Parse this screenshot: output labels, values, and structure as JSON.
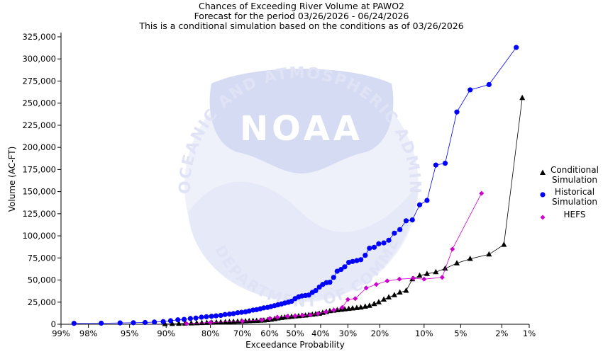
{
  "chart_data": {
    "type": "scatter",
    "title": "Chances of Exceeding River Volume at PAWO2",
    "subtitle1": "Forecast for the period 03/26/2026 - 06/24/2026",
    "subtitle2": "This is a conditional simulation based on the conditions as of 03/26/2026",
    "xlabel": "Exceedance Probability",
    "ylabel": "Volume (AC-FT)",
    "x_scale": "normal-probability",
    "xlim": [
      99,
      1
    ],
    "ylim": [
      0,
      325000
    ],
    "x_ticks": [
      {
        "p": 99,
        "label": "99%"
      },
      {
        "p": 98,
        "label": "98%"
      },
      {
        "p": 95,
        "label": "95%"
      },
      {
        "p": 90,
        "label": "90%"
      },
      {
        "p": 80,
        "label": "80%"
      },
      {
        "p": 70,
        "label": "70%"
      },
      {
        "p": 60,
        "label": "60%"
      },
      {
        "p": 50,
        "label": "50%"
      },
      {
        "p": 40,
        "label": "40%"
      },
      {
        "p": 30,
        "label": "30%"
      },
      {
        "p": 20,
        "label": "20%"
      },
      {
        "p": 10,
        "label": "10%"
      },
      {
        "p": 5,
        "label": "5%"
      },
      {
        "p": 2,
        "label": "2%"
      },
      {
        "p": 1,
        "label": "1%"
      }
    ],
    "y_ticks": [
      {
        "v": 0,
        "label": "0"
      },
      {
        "v": 25000,
        "label": "25,000"
      },
      {
        "v": 50000,
        "label": "50,000"
      },
      {
        "v": 75000,
        "label": "75,000"
      },
      {
        "v": 100000,
        "label": "100,000"
      },
      {
        "v": 125000,
        "label": "125,000"
      },
      {
        "v": 150000,
        "label": "150,000"
      },
      {
        "v": 175000,
        "label": "175,000"
      },
      {
        "v": 200000,
        "label": "200,000"
      },
      {
        "v": 225000,
        "label": "225,000"
      },
      {
        "v": 250000,
        "label": "250,000"
      },
      {
        "v": 275000,
        "label": "275,000"
      },
      {
        "v": 300000,
        "label": "300,000"
      },
      {
        "v": 325000,
        "label": "325,000"
      }
    ],
    "legend": {
      "position": "right"
    },
    "watermark_text": "NATIONAL OCEANIC AND ATMOSPHERIC ADMINISTRATION · U.S. DEPARTMENT OF COMMERCE · NOAA",
    "series": [
      {
        "name": "Conditional Simulation",
        "legend_lines": [
          "Conditional",
          "Simulation"
        ],
        "color": "#000000",
        "line_color": "#000000",
        "marker": "triangle",
        "points": [
          [
            90.2,
            300
          ],
          [
            88.9,
            500
          ],
          [
            87.6,
            700
          ],
          [
            86.3,
            900
          ],
          [
            84.9,
            1100
          ],
          [
            83.6,
            1300
          ],
          [
            82.3,
            1500
          ],
          [
            81,
            1700
          ],
          [
            79.6,
            1900
          ],
          [
            78.3,
            2100
          ],
          [
            77,
            2300
          ],
          [
            75.6,
            2500
          ],
          [
            74.3,
            2700
          ],
          [
            73,
            2900
          ],
          [
            71.6,
            3100
          ],
          [
            70.3,
            3300
          ],
          [
            68.9,
            3500
          ],
          [
            67.6,
            3700
          ],
          [
            66.2,
            3900
          ],
          [
            64.9,
            4000
          ],
          [
            63.5,
            4200
          ],
          [
            62.2,
            4400
          ],
          [
            60.8,
            4800
          ],
          [
            59.5,
            5300
          ],
          [
            58.1,
            6000
          ],
          [
            56.8,
            6700
          ],
          [
            55.4,
            7300
          ],
          [
            54.1,
            7800
          ],
          [
            52.7,
            8200
          ],
          [
            51.4,
            8600
          ],
          [
            50,
            9000
          ],
          [
            48.6,
            9300
          ],
          [
            47.3,
            9700
          ],
          [
            45.9,
            10000
          ],
          [
            44.6,
            10500
          ],
          [
            43.2,
            11000
          ],
          [
            41.9,
            11500
          ],
          [
            40.5,
            12000
          ],
          [
            39.2,
            13000
          ],
          [
            37.8,
            14000
          ],
          [
            36.5,
            15000
          ],
          [
            35.1,
            15500
          ],
          [
            33.8,
            16000
          ],
          [
            32.4,
            16500
          ],
          [
            31.1,
            17000
          ],
          [
            29.7,
            17500
          ],
          [
            28.4,
            18000
          ],
          [
            27,
            18500
          ],
          [
            25.7,
            19000
          ],
          [
            24.3,
            20000
          ],
          [
            23,
            21000
          ],
          [
            21.6,
            23000
          ],
          [
            20.3,
            25000
          ],
          [
            18.9,
            28000
          ],
          [
            17.6,
            30500
          ],
          [
            16.2,
            33000
          ],
          [
            14.9,
            36000
          ],
          [
            13.5,
            38000
          ],
          [
            12.2,
            51000
          ],
          [
            10.8,
            55000
          ],
          [
            9.5,
            57000
          ],
          [
            8.1,
            59000
          ],
          [
            6.8,
            63000
          ],
          [
            5.4,
            69000
          ],
          [
            4.1,
            74000
          ],
          [
            2.7,
            79000
          ],
          [
            1.9,
            90000
          ],
          [
            1.2,
            256000
          ]
        ]
      },
      {
        "name": "Historical Simulation",
        "legend_lines": [
          "Historical",
          "Simulation"
        ],
        "color": "#0000ff",
        "line_color": "#0000ff",
        "marker": "circle",
        "points": [
          [
            98.6,
            1000
          ],
          [
            97.3,
            1200
          ],
          [
            95.9,
            1500
          ],
          [
            94.6,
            1700
          ],
          [
            93.2,
            2000
          ],
          [
            91.9,
            2500
          ],
          [
            90.5,
            3000
          ],
          [
            89.2,
            4000
          ],
          [
            87.8,
            5000
          ],
          [
            86.5,
            5500
          ],
          [
            85.1,
            6500
          ],
          [
            83.8,
            7000
          ],
          [
            82.4,
            8000
          ],
          [
            81.1,
            8500
          ],
          [
            79.7,
            9000
          ],
          [
            78.4,
            9500
          ],
          [
            77,
            10000
          ],
          [
            75.7,
            11000
          ],
          [
            74.3,
            11500
          ],
          [
            73,
            12000
          ],
          [
            71.6,
            13000
          ],
          [
            70.3,
            13500
          ],
          [
            68.9,
            14000
          ],
          [
            67.6,
            15000
          ],
          [
            66.2,
            16000
          ],
          [
            64.9,
            16500
          ],
          [
            63.5,
            17500
          ],
          [
            62.2,
            18500
          ],
          [
            60.8,
            19000
          ],
          [
            59.5,
            20000
          ],
          [
            58.1,
            21000
          ],
          [
            56.8,
            22000
          ],
          [
            55.4,
            23000
          ],
          [
            54.1,
            24000
          ],
          [
            52.7,
            25000
          ],
          [
            51.4,
            26000
          ],
          [
            50,
            29000
          ],
          [
            48.6,
            31000
          ],
          [
            47.3,
            32000
          ],
          [
            45.9,
            32500
          ],
          [
            44.6,
            33000
          ],
          [
            43.2,
            36000
          ],
          [
            41.9,
            38000
          ],
          [
            40.5,
            42000
          ],
          [
            39.2,
            45000
          ],
          [
            37.8,
            47000
          ],
          [
            36.5,
            47500
          ],
          [
            35.1,
            53000
          ],
          [
            33.8,
            60000
          ],
          [
            32.4,
            62000
          ],
          [
            31.1,
            65000
          ],
          [
            29.7,
            70000
          ],
          [
            28.4,
            71000
          ],
          [
            27,
            72000
          ],
          [
            25.7,
            73000
          ],
          [
            24.3,
            78000
          ],
          [
            23,
            86000
          ],
          [
            21.6,
            87000
          ],
          [
            20.3,
            91000
          ],
          [
            18.9,
            92000
          ],
          [
            17.6,
            95000
          ],
          [
            16.2,
            103000
          ],
          [
            14.9,
            107000
          ],
          [
            13.5,
            117000
          ],
          [
            12.2,
            118000
          ],
          [
            10.8,
            135000
          ],
          [
            9.5,
            140000
          ],
          [
            8.1,
            180000
          ],
          [
            6.8,
            182000
          ],
          [
            5.4,
            240000
          ],
          [
            4.1,
            265000
          ],
          [
            2.7,
            271000
          ],
          [
            1.4,
            313000
          ]
        ]
      },
      {
        "name": "HEFS",
        "legend_lines": [
          "HEFS"
        ],
        "color": "#cc00cc",
        "line_color": "#cc00cc",
        "marker": "diamond",
        "points": [
          [
            86,
            800
          ],
          [
            80,
            2000
          ],
          [
            70,
            3500
          ],
          [
            63,
            5000
          ],
          [
            60,
            6500
          ],
          [
            57,
            8000
          ],
          [
            53,
            9000
          ],
          [
            50,
            9500
          ],
          [
            47,
            10000
          ],
          [
            44,
            10500
          ],
          [
            41,
            12000
          ],
          [
            38,
            14000
          ],
          [
            35,
            16000
          ],
          [
            32,
            19000
          ],
          [
            30,
            28000
          ],
          [
            27.5,
            29000
          ],
          [
            24,
            41000
          ],
          [
            21,
            45000
          ],
          [
            18,
            49000
          ],
          [
            15,
            51000
          ],
          [
            12,
            52000
          ],
          [
            10,
            51000
          ],
          [
            7.2,
            53000
          ],
          [
            5.9,
            85000
          ],
          [
            3.2,
            148000
          ]
        ]
      }
    ]
  }
}
